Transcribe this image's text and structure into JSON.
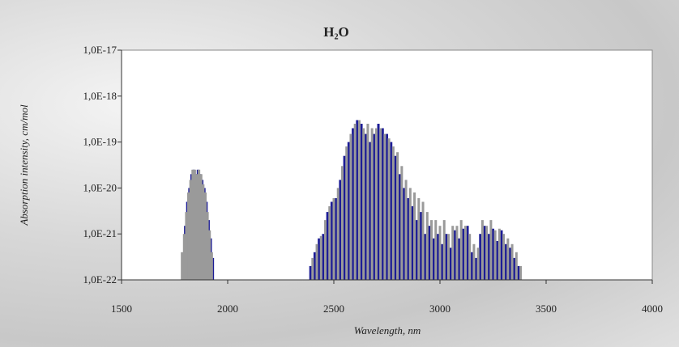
{
  "chart_data": {
    "type": "bar",
    "title": "H₂O",
    "x_label": "Wavelength, nm",
    "y_label": "Absorption intensity, cm/mol",
    "log_y": true,
    "xlim": [
      1500,
      4000
    ],
    "xticks": [
      1500,
      2000,
      2500,
      3000,
      3500,
      4000
    ],
    "ylim": [
      1e-22,
      1e-17
    ],
    "yticks": [
      {
        "value": 1e-22,
        "label": "1,0E-22"
      },
      {
        "value": 1e-21,
        "label": "1,0E-21"
      },
      {
        "value": 1e-20,
        "label": "1,0E-20"
      },
      {
        "value": 1e-19,
        "label": "1,0E-19"
      },
      {
        "value": 1e-18,
        "label": "1,0E-18"
      },
      {
        "value": 1e-17,
        "label": "1,0E-17"
      }
    ],
    "series": [
      {
        "color": "#1c1c96",
        "x": [
          1790,
          1800,
          1810,
          1820,
          1830,
          1840,
          1850,
          1860,
          1870,
          1880,
          1890,
          1900,
          1910,
          1920,
          1930,
          2390,
          2410,
          2430,
          2450,
          2470,
          2490,
          2510,
          2530,
          2550,
          2570,
          2590,
          2610,
          2630,
          2650,
          2670,
          2690,
          2710,
          2730,
          2750,
          2770,
          2790,
          2810,
          2830,
          2850,
          2870,
          2890,
          2910,
          2930,
          2950,
          2970,
          2990,
          3010,
          3030,
          3050,
          3070,
          3090,
          3110,
          3130,
          3150,
          3170,
          3190,
          3210,
          3230,
          3250,
          3270,
          3290,
          3310,
          3330,
          3350,
          3370
        ],
        "values": [
          3e-22,
          1.5e-21,
          5e-21,
          1e-20,
          2e-20,
          2.5e-20,
          2e-20,
          2.5e-20,
          2e-20,
          1.5e-20,
          1e-20,
          5e-21,
          2e-21,
          8e-22,
          3e-22,
          2e-22,
          4e-22,
          8e-22,
          1e-21,
          3e-21,
          5e-21,
          6e-21,
          1.5e-20,
          5e-20,
          1e-19,
          2e-19,
          3e-19,
          2.5e-19,
          1.5e-19,
          1e-19,
          1.5e-19,
          2.5e-19,
          2e-19,
          1.5e-19,
          1e-19,
          5e-20,
          2e-20,
          1e-20,
          6e-21,
          4e-21,
          2e-21,
          3e-21,
          1e-21,
          1.5e-21,
          8e-22,
          1e-21,
          6e-22,
          1e-21,
          5e-22,
          1.2e-21,
          8e-22,
          1.3e-21,
          1.5e-21,
          4e-22,
          3e-22,
          1e-21,
          1.5e-21,
          1e-21,
          1.3e-21,
          7e-22,
          1.2e-21,
          6e-22,
          5e-22,
          3e-22,
          2e-22
        ]
      },
      {
        "color": "#9a9a9a",
        "x": [
          1785,
          1795,
          1805,
          1815,
          1825,
          1835,
          1845,
          1855,
          1865,
          1875,
          1885,
          1895,
          1905,
          1915,
          1925,
          2400,
          2420,
          2440,
          2460,
          2480,
          2500,
          2520,
          2540,
          2560,
          2580,
          2600,
          2620,
          2640,
          2660,
          2680,
          2700,
          2720,
          2740,
          2760,
          2780,
          2800,
          2820,
          2840,
          2860,
          2880,
          2900,
          2920,
          2940,
          2960,
          2980,
          3000,
          3020,
          3040,
          3060,
          3080,
          3100,
          3120,
          3140,
          3160,
          3180,
          3200,
          3220,
          3240,
          3260,
          3280,
          3300,
          3320,
          3340,
          3360,
          3380
        ],
        "values": [
          4e-22,
          1e-21,
          3e-21,
          8e-21,
          1.5e-20,
          2.5e-20,
          2.5e-20,
          2e-20,
          2.5e-20,
          2e-20,
          1.2e-20,
          8e-21,
          3e-21,
          1.2e-21,
          4e-22,
          3e-22,
          6e-22,
          9e-22,
          2e-21,
          4e-21,
          6e-21,
          1e-20,
          3e-20,
          8e-20,
          1.5e-19,
          2.5e-19,
          3e-19,
          2e-19,
          2.5e-19,
          2e-19,
          2e-19,
          2e-19,
          1.5e-19,
          1.2e-19,
          8e-20,
          6e-20,
          3e-20,
          1.5e-20,
          1e-20,
          8e-21,
          6e-21,
          5e-21,
          3e-21,
          2e-21,
          2e-21,
          1.5e-21,
          2e-21,
          1e-21,
          1.5e-21,
          1.5e-21,
          2e-21,
          1.5e-21,
          1e-21,
          6e-22,
          5e-22,
          2e-21,
          1.5e-21,
          2e-21,
          1.2e-21,
          1.3e-21,
          1e-21,
          8e-22,
          6e-22,
          4e-22,
          2e-22
        ]
      }
    ]
  }
}
